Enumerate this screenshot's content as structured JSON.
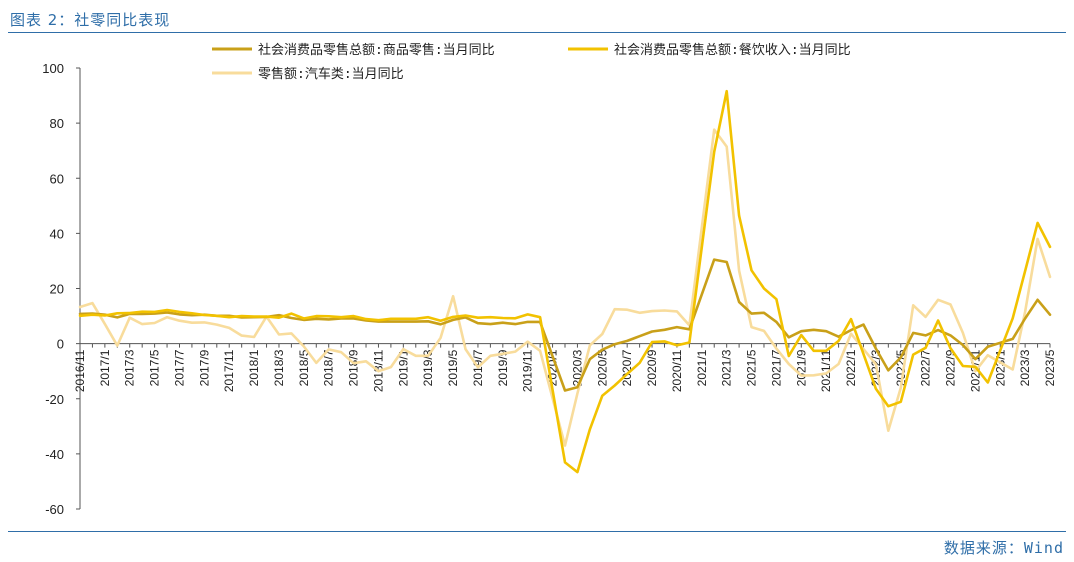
{
  "header": {
    "title": "图表 2：社零同比表现"
  },
  "footer": {
    "source": "数据来源：Wind"
  },
  "chart_data": {
    "type": "line",
    "title": "",
    "xlabel": "",
    "ylabel": "",
    "ylim": [
      -60,
      100
    ],
    "yticks": [
      -60,
      -40,
      -20,
      0,
      20,
      40,
      60,
      80,
      100
    ],
    "grid": false,
    "legend_position": "top",
    "x": [
      "2016/11",
      "2016/12",
      "2017/1",
      "2017/2",
      "2017/3",
      "2017/4",
      "2017/5",
      "2017/6",
      "2017/7",
      "2017/8",
      "2017/9",
      "2017/10",
      "2017/11",
      "2017/12",
      "2018/1",
      "2018/2",
      "2018/3",
      "2018/4",
      "2018/5",
      "2018/6",
      "2018/7",
      "2018/8",
      "2018/9",
      "2018/10",
      "2018/11",
      "2018/12",
      "2019/1",
      "2019/2",
      "2019/3",
      "2019/4",
      "2019/5",
      "2019/6",
      "2019/7",
      "2019/8",
      "2019/9",
      "2019/10",
      "2019/11",
      "2019/12",
      "2020/1",
      "2020/2",
      "2020/3",
      "2020/4",
      "2020/5",
      "2020/6",
      "2020/7",
      "2020/8",
      "2020/9",
      "2020/10",
      "2020/11",
      "2020/12",
      "2021/1",
      "2021/2",
      "2021/3",
      "2021/4",
      "2021/5",
      "2021/6",
      "2021/7",
      "2021/8",
      "2021/9",
      "2021/10",
      "2021/11",
      "2021/12",
      "2022/1",
      "2022/2",
      "2022/3",
      "2022/4",
      "2022/5",
      "2022/6",
      "2022/7",
      "2022/8",
      "2022/9",
      "2022/10",
      "2022/11",
      "2022/12",
      "2023/1",
      "2023/2",
      "2023/3",
      "2023/4",
      "2023/5"
    ],
    "xticks": [
      "2016/11",
      "2017/1",
      "2017/3",
      "2017/5",
      "2017/7",
      "2017/9",
      "2017/11",
      "2018/1",
      "2018/3",
      "2018/5",
      "2018/7",
      "2018/9",
      "2018/11",
      "2019/1",
      "2019/3",
      "2019/5",
      "2019/7",
      "2019/9",
      "2019/11",
      "2020/1",
      "2020/3",
      "2020/5",
      "2020/7",
      "2020/9",
      "2020/11",
      "2021/1",
      "2021/3",
      "2021/5",
      "2021/7",
      "2021/9",
      "2021/11",
      "2022/1",
      "2022/3",
      "2022/5",
      "2022/7",
      "2022/9",
      "2022/11",
      "2023/1",
      "2023/3",
      "2023/5"
    ],
    "series": [
      {
        "name": "社会消费品零售总额:商品零售:当月同比",
        "color": "#c9a019",
        "values": [
          10.8,
          10.9,
          10.5,
          9.5,
          10.8,
          10.8,
          10.9,
          11.3,
          10.6,
          10.3,
          10.5,
          10.1,
          10.1,
          9.5,
          9.6,
          9.7,
          10.3,
          9.3,
          8.6,
          9.0,
          8.8,
          9.1,
          9.1,
          8.4,
          8.0,
          8.0,
          8.0,
          8.0,
          8.1,
          7.0,
          8.6,
          9.5,
          7.4,
          7.1,
          7.6,
          7.1,
          7.9,
          7.9,
          null,
          -17.0,
          -15.8,
          -5.6,
          -2.2,
          -0.2,
          1.0,
          2.7,
          4.4,
          5.0,
          6.0,
          5.2,
          null,
          30.5,
          29.6,
          15.1,
          10.9,
          11.2,
          7.9,
          2.3,
          4.5,
          5.0,
          4.5,
          2.5,
          4.9,
          6.9,
          -1.8,
          -9.7,
          -5.0,
          3.9,
          3.0,
          4.9,
          3.0,
          -0.5,
          -5.6,
          -1.1,
          null,
          1.7,
          9.1,
          15.9,
          10.5
        ]
      },
      {
        "name": "社会消费品零售总额:餐饮收入:当月同比",
        "color": "#f2c200",
        "values": [
          10.1,
          10.5,
          10.2,
          11.0,
          11.1,
          11.6,
          11.5,
          12.2,
          11.5,
          11.0,
          10.4,
          10.1,
          9.6,
          10.0,
          9.8,
          9.8,
          9.4,
          10.9,
          9.1,
          10.0,
          9.9,
          9.6,
          10.0,
          8.9,
          8.5,
          9.0,
          9.0,
          9.0,
          9.6,
          8.3,
          9.7,
          10.2,
          9.4,
          9.6,
          9.3,
          9.2,
          10.6,
          9.6,
          null,
          -43.1,
          -46.6,
          -31.1,
          -18.9,
          -15.2,
          -11.0,
          -7.0,
          0.6,
          0.8,
          -0.6,
          0.4,
          null,
          69.6,
          91.6,
          46.4,
          26.6,
          20.0,
          16.1,
          -4.5,
          3.1,
          -2.6,
          -2.6,
          1.0,
          8.9,
          null,
          -16.4,
          -22.7,
          -21.1,
          -4.0,
          -1.5,
          8.4,
          -1.7,
          -8.1,
          -8.4,
          -14.1,
          null,
          9.2,
          26.3,
          43.8,
          35.1
        ]
      },
      {
        "name": "零售额:汽车类:当月同比",
        "color": "#f8dc9c",
        "values": [
          13.3,
          14.7,
          7.1,
          -0.7,
          9.4,
          7.1,
          7.5,
          9.6,
          8.3,
          7.6,
          7.7,
          6.9,
          5.7,
          2.9,
          2.4,
          9.8,
          3.3,
          3.7,
          -1.0,
          -7.0,
          -2.1,
          -3.1,
          -7.1,
          -6.4,
          -10.0,
          -8.5,
          -2.0,
          -4.4,
          -4.4,
          2.1,
          17.2,
          -2.0,
          -8.6,
          -4.4,
          -3.7,
          -2.9,
          0.7,
          -2.6,
          null,
          -37.0,
          -18.1,
          -0.6,
          3.5,
          12.5,
          12.3,
          11.2,
          11.8,
          12.0,
          11.7,
          6.6,
          null,
          77.6,
          71.5,
          26.5,
          6.0,
          4.6,
          -1.8,
          -7.4,
          -11.6,
          -11.5,
          -10.8,
          -7.4,
          3.6,
          null,
          -7.5,
          -31.6,
          -16.0,
          13.9,
          9.7,
          15.9,
          14.2,
          3.9,
          -10.0,
          -4.2,
          null,
          -9.4,
          11.5,
          38.0,
          24.2
        ]
      }
    ]
  }
}
